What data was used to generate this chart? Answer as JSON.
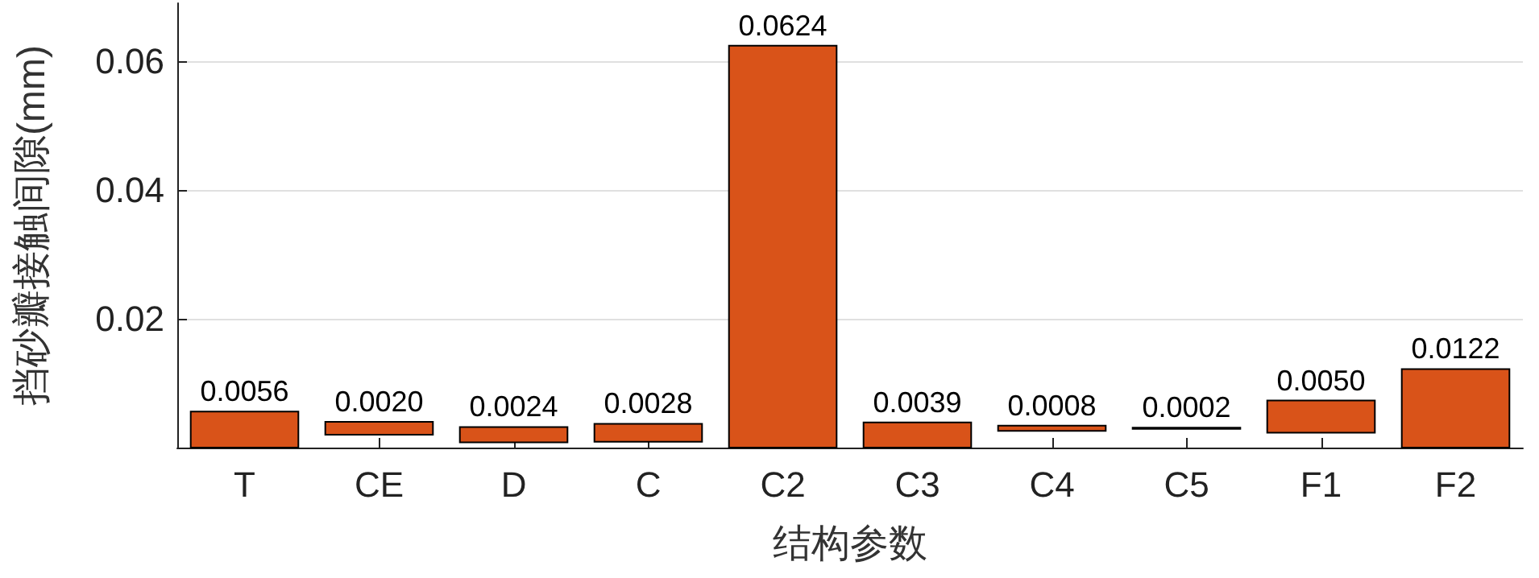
{
  "chart_data": {
    "type": "bar",
    "categories": [
      "T",
      "CE",
      "D",
      "C",
      "C2",
      "C3",
      "C4",
      "C5",
      "F1",
      "F2"
    ],
    "values": [
      0.0056,
      0.002,
      0.0024,
      0.0028,
      0.0624,
      0.0039,
      0.0008,
      0.0002,
      0.005,
      0.0122
    ],
    "base": [
      0,
      0.002,
      0.0008,
      0.0009,
      0,
      0,
      0.0026,
      0.0029,
      0.0023,
      0
    ],
    "value_labels": [
      "0.0056",
      "0.0020",
      "0.0024",
      "0.0028",
      "0.0624",
      "0.0039",
      "0.0008",
      "0.0002",
      "0.0050",
      "0.0122"
    ],
    "color": "#d95319",
    "xlabel": "结构参数",
    "ylabel": "挡砂瓣接触间隙(mm)",
    "ylim": [
      0,
      0.069
    ],
    "yticks": [
      0.02,
      0.04,
      0.06
    ],
    "grid": "y"
  }
}
